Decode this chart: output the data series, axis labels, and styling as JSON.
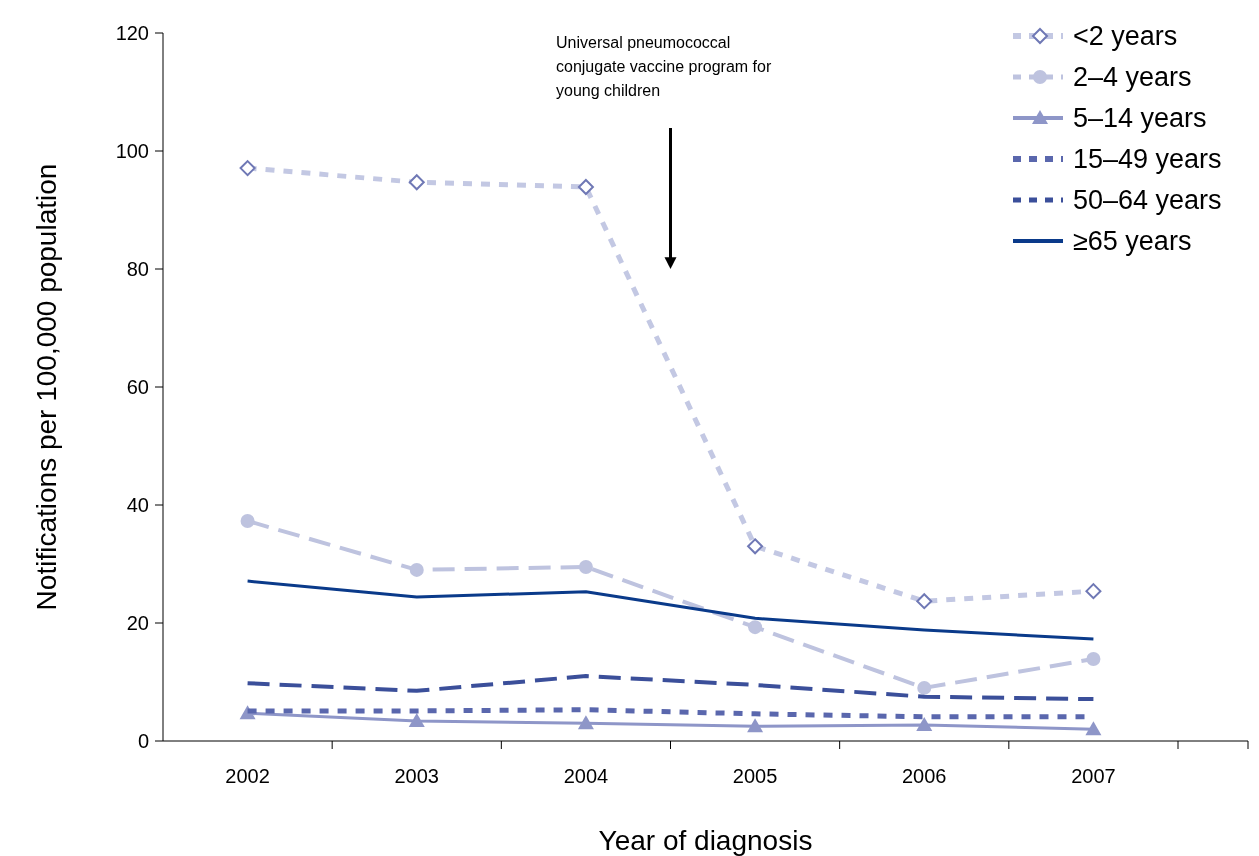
{
  "chart_data": {
    "type": "line",
    "xlabel": "Year of diagnosis",
    "ylabel": "Notifications per 100,000 population",
    "categories": [
      "2002",
      "2003",
      "2004",
      "2005",
      "2006",
      "2007"
    ],
    "ylim": [
      0,
      120
    ],
    "yticks": [
      0,
      20,
      40,
      60,
      80,
      100,
      120
    ],
    "grid": false,
    "legend": "top right",
    "annotations": [
      "Universal pneumococcal conjugate vaccine program for young children"
    ],
    "series": [
      {
        "name": "<2 years",
        "color": "#c3c8e3",
        "marker": "diamond",
        "line_style": "dotted",
        "values": [
          97.1,
          94.7,
          93.9,
          33.0,
          23.7,
          25.4
        ]
      },
      {
        "name": "2–4 years",
        "color": "#bec3df",
        "marker": "circle",
        "line_style": "dashed",
        "values": [
          37.3,
          29.0,
          29.5,
          19.3,
          9.0,
          13.9
        ]
      },
      {
        "name": "5–14 years",
        "color": "#8e96c8",
        "marker": "triangle",
        "line_style": "solid",
        "values": [
          4.7,
          3.4,
          3.0,
          2.5,
          2.7,
          2.0
        ]
      },
      {
        "name": "15–49 years",
        "color": "#5a67ad",
        "marker": "none",
        "line_style": "dotted",
        "values": [
          5.1,
          5.1,
          5.3,
          4.6,
          4.1,
          4.1
        ]
      },
      {
        "name": "50–64 years",
        "color": "#3b4f9a",
        "marker": "none",
        "line_style": "dashed",
        "values": [
          9.8,
          8.5,
          11.0,
          9.5,
          7.5,
          7.1
        ]
      },
      {
        "name": "≥65 years",
        "color": "#0a3a8a",
        "marker": "none",
        "line_style": "solid",
        "values": [
          27.1,
          24.4,
          25.3,
          20.8,
          18.8,
          17.3
        ]
      }
    ]
  }
}
